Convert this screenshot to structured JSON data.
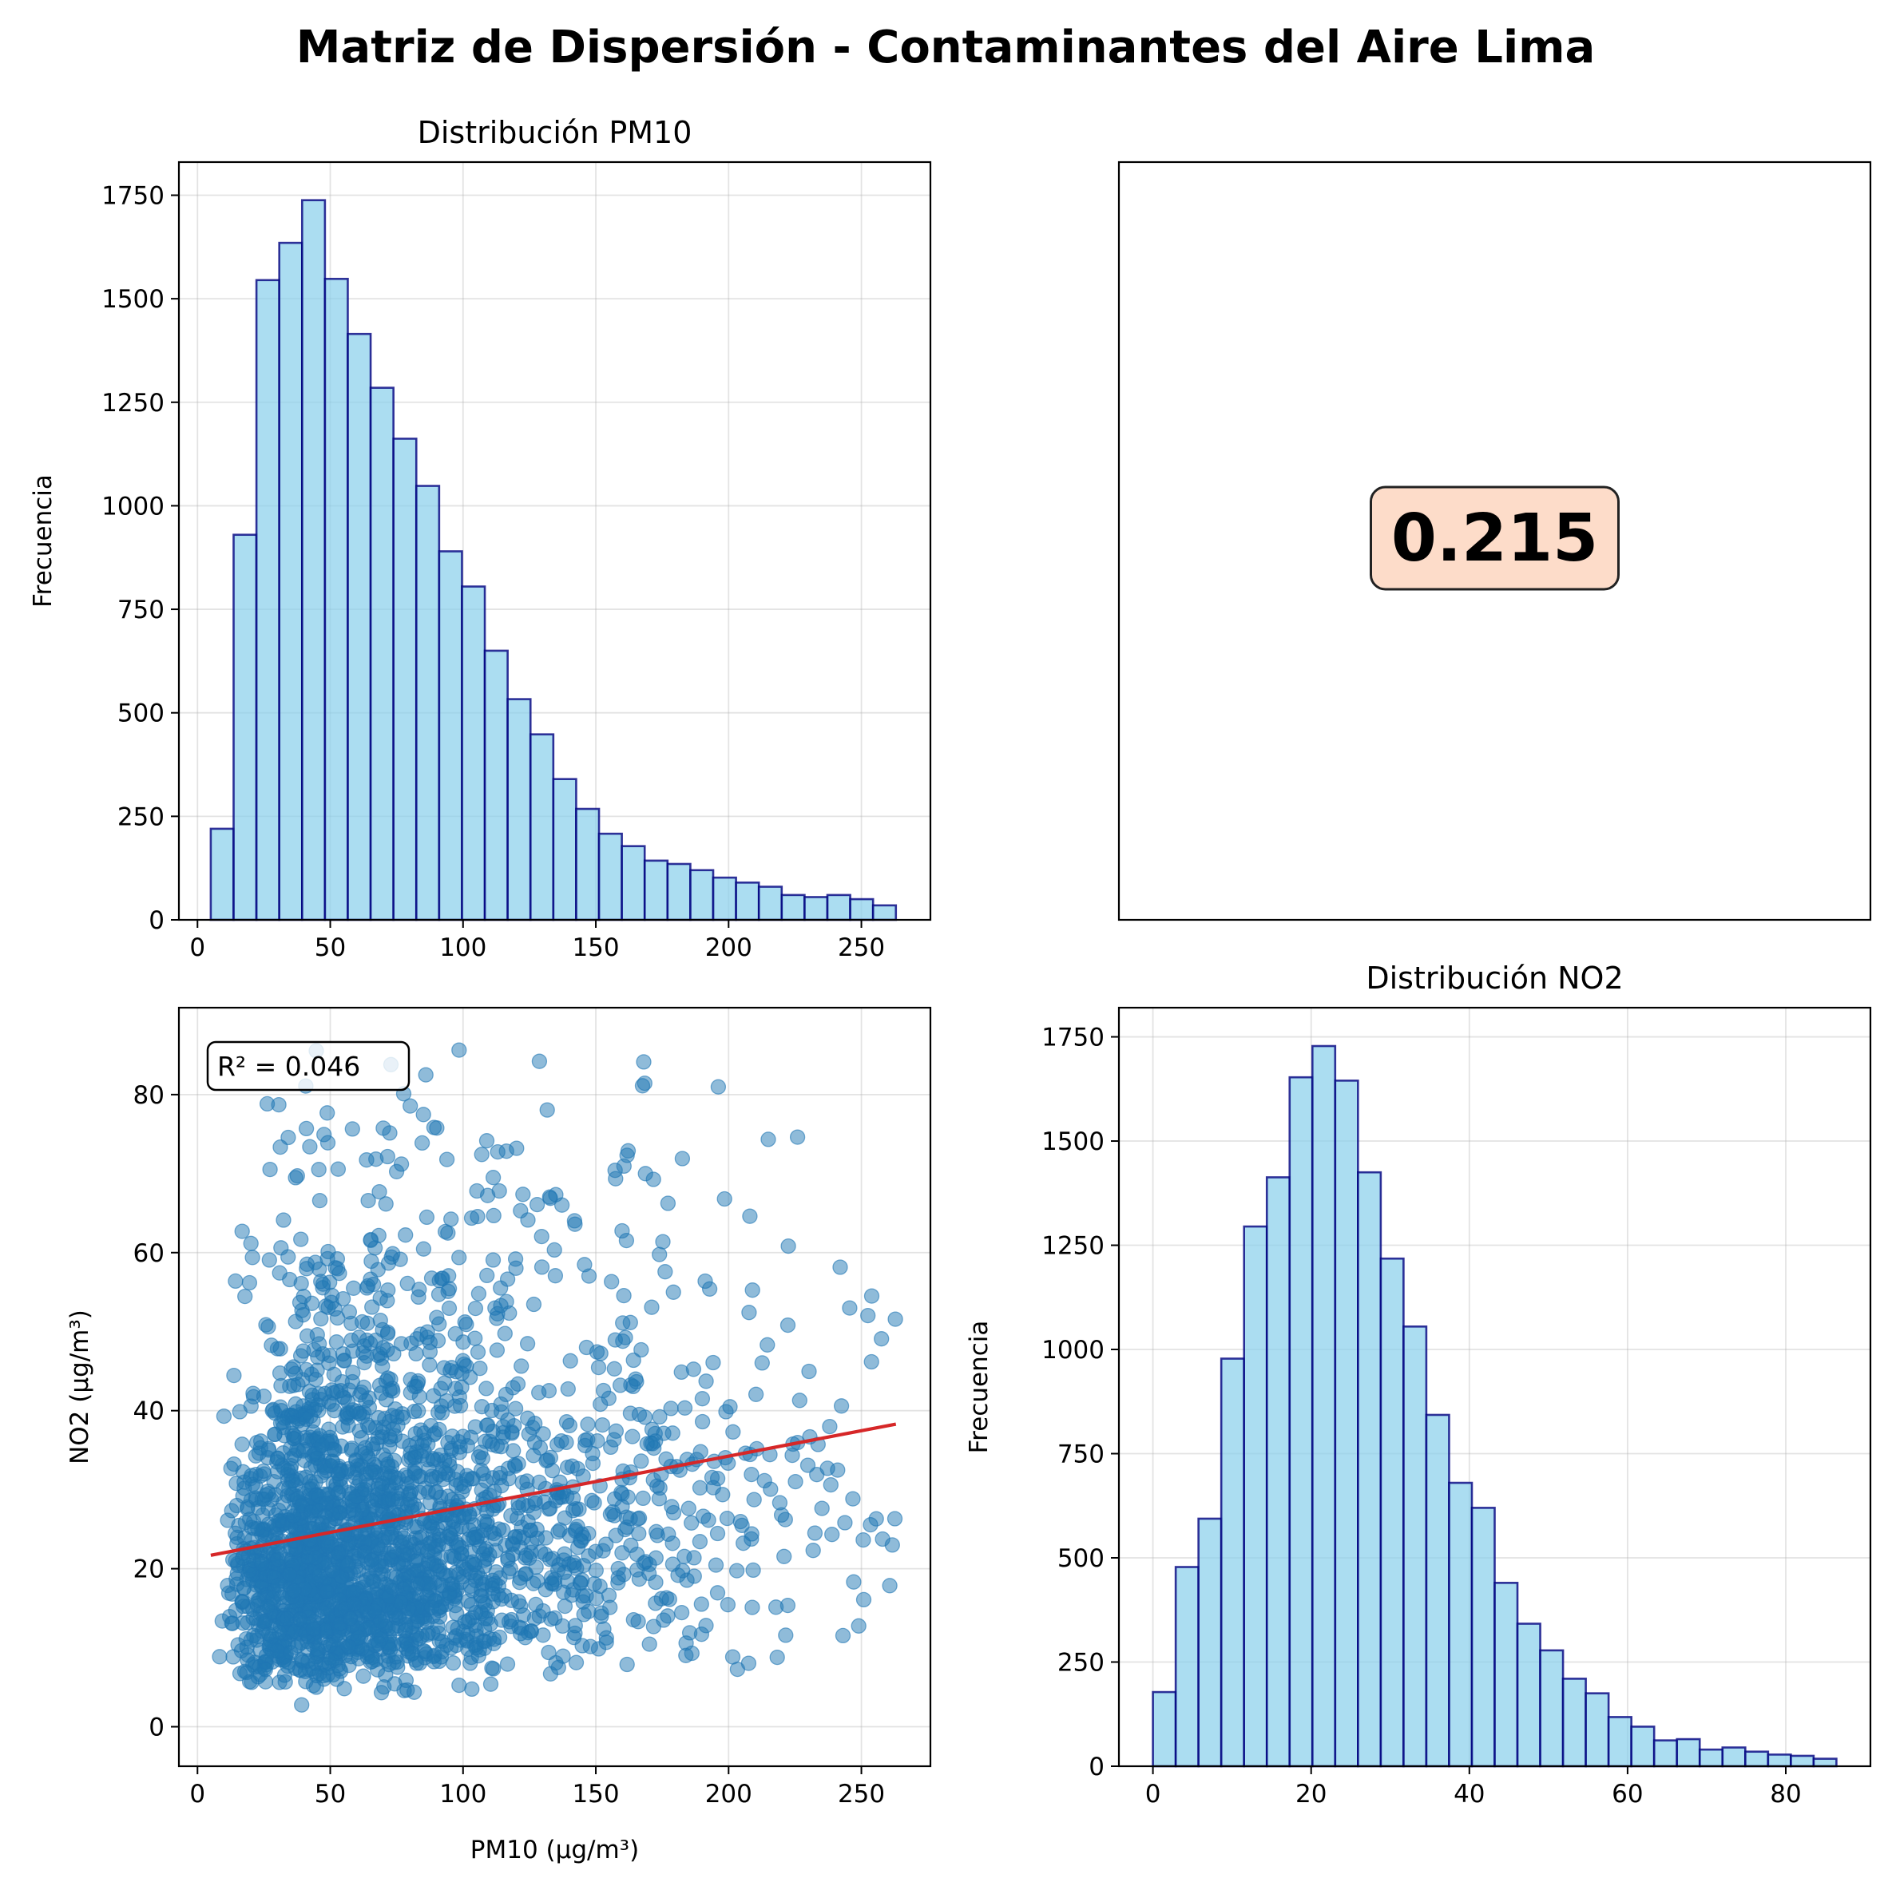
{
  "figure": {
    "title": "Matriz de Dispersión - Contaminantes del Aire Lima"
  },
  "chart_data": [
    {
      "type": "bar",
      "panel": "top-left",
      "title": "Distribución PM10",
      "xlabel": "",
      "ylabel": "Frecuencia",
      "xlim": [
        -7,
        276
      ],
      "ylim": [
        0,
        1830
      ],
      "xticks": [
        0,
        50,
        100,
        150,
        200,
        250
      ],
      "yticks": [
        0,
        250,
        500,
        750,
        1000,
        1250,
        1500,
        1750
      ],
      "grid": true,
      "bin_edges": [
        5,
        13.6,
        22.2,
        30.8,
        39.4,
        48,
        56.6,
        65.2,
        73.8,
        82.4,
        91,
        99.6,
        108.2,
        116.8,
        125.4,
        134,
        142.6,
        151.2,
        159.8,
        168.4,
        177,
        185.6,
        194.2,
        202.8,
        211.4,
        220,
        228.6,
        237.2,
        245.8,
        254.4,
        263
      ],
      "values": [
        220,
        930,
        1545,
        1635,
        1738,
        1548,
        1415,
        1285,
        1162,
        1048,
        890,
        805,
        650,
        533,
        448,
        340,
        268,
        208,
        178,
        143,
        135,
        120,
        102,
        90,
        80,
        60,
        55,
        60,
        50,
        35
      ]
    },
    {
      "type": "table",
      "panel": "top-right",
      "value": "0.215",
      "box_color": "#fddcc9"
    },
    {
      "type": "scatter",
      "panel": "bottom-left",
      "title": "",
      "xlabel": "PM10 (µg/m³)",
      "ylabel": "NO2 (µg/m³)",
      "xlim": [
        -7,
        276
      ],
      "ylim": [
        -5,
        91
      ],
      "xticks": [
        0,
        50,
        100,
        150,
        200,
        250
      ],
      "yticks": [
        0,
        20,
        40,
        60,
        80
      ],
      "grid": true,
      "annotation": "R² = 0.046",
      "trend_line": {
        "x": [
          5,
          263
        ],
        "y": [
          21.7,
          38.3
        ]
      },
      "point_count": 2600
    },
    {
      "type": "bar",
      "panel": "bottom-right",
      "title": "Distribución NO2",
      "xlabel": "",
      "ylabel": "Frecuencia",
      "xlim": [
        -4.3,
        90.7
      ],
      "ylim": [
        0,
        1820
      ],
      "xticks": [
        0,
        20,
        40,
        60,
        80
      ],
      "yticks": [
        0,
        250,
        500,
        750,
        1000,
        1250,
        1500,
        1750
      ],
      "grid": true,
      "bin_edges": [
        0,
        2.88,
        5.76,
        8.64,
        11.52,
        14.4,
        17.28,
        20.16,
        23.04,
        25.92,
        28.8,
        31.68,
        34.56,
        37.44,
        40.32,
        43.2,
        46.08,
        48.96,
        51.84,
        54.72,
        57.6,
        60.48,
        63.36,
        66.24,
        69.12,
        72,
        74.88,
        77.76,
        80.64,
        83.52,
        86.4
      ],
      "values": [
        178,
        478,
        594,
        978,
        1295,
        1413,
        1653,
        1728,
        1645,
        1425,
        1218,
        1055,
        843,
        680,
        620,
        440,
        342,
        278,
        210,
        175,
        118,
        95,
        62,
        65,
        40,
        45,
        35,
        28,
        25,
        18
      ]
    }
  ]
}
